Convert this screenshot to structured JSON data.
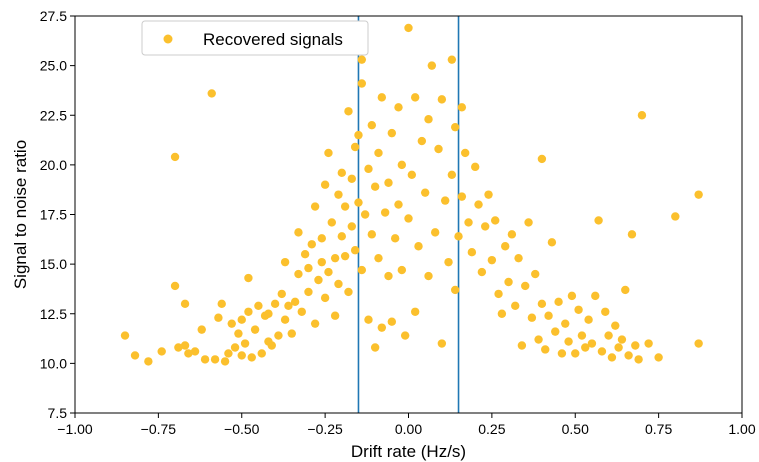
{
  "chart_data": {
    "type": "scatter",
    "title": "",
    "xlabel": "Drift rate (Hz/s)",
    "ylabel": "Signal to noise ratio",
    "xlim": [
      -1.0,
      1.0
    ],
    "ylim": [
      7.5,
      27.5
    ],
    "xticks": [
      -1.0,
      -0.75,
      -0.5,
      -0.25,
      0.0,
      0.25,
      0.5,
      0.75,
      1.0
    ],
    "xtick_labels": [
      "−1.00",
      "−0.75",
      "−0.50",
      "−0.25",
      "0.00",
      "0.25",
      "0.50",
      "0.75",
      "1.00"
    ],
    "yticks": [
      7.5,
      10.0,
      12.5,
      15.0,
      17.5,
      20.0,
      22.5,
      25.0,
      27.5
    ],
    "ytick_labels": [
      "7.5",
      "10.0",
      "12.5",
      "15.0",
      "17.5",
      "20.0",
      "22.5",
      "25.0",
      "27.5"
    ],
    "grid": false,
    "legend_position": "top-left",
    "vlines": [
      -0.15,
      0.15
    ],
    "vline_color": "#1f77b4",
    "series": [
      {
        "name": "Recovered signals",
        "color": "#fbc02d",
        "points": [
          [
            -0.85,
            11.4
          ],
          [
            -0.82,
            10.4
          ],
          [
            -0.78,
            10.1
          ],
          [
            -0.74,
            10.6
          ],
          [
            -0.7,
            20.4
          ],
          [
            -0.7,
            13.9
          ],
          [
            -0.69,
            10.8
          ],
          [
            -0.67,
            13.0
          ],
          [
            -0.67,
            10.9
          ],
          [
            -0.66,
            10.5
          ],
          [
            -0.64,
            10.6
          ],
          [
            -0.62,
            11.7
          ],
          [
            -0.61,
            10.2
          ],
          [
            -0.59,
            23.6
          ],
          [
            -0.58,
            10.2
          ],
          [
            -0.57,
            12.3
          ],
          [
            -0.56,
            13.0
          ],
          [
            -0.55,
            10.1
          ],
          [
            -0.54,
            10.5
          ],
          [
            -0.53,
            12.0
          ],
          [
            -0.52,
            10.8
          ],
          [
            -0.51,
            11.5
          ],
          [
            -0.5,
            12.2
          ],
          [
            -0.5,
            10.4
          ],
          [
            -0.49,
            11.0
          ],
          [
            -0.48,
            14.3
          ],
          [
            -0.48,
            12.6
          ],
          [
            -0.47,
            10.3
          ],
          [
            -0.46,
            11.7
          ],
          [
            -0.45,
            12.9
          ],
          [
            -0.44,
            10.5
          ],
          [
            -0.43,
            12.4
          ],
          [
            -0.42,
            11.1
          ],
          [
            -0.42,
            12.5
          ],
          [
            -0.41,
            10.9
          ],
          [
            -0.4,
            13.0
          ],
          [
            -0.39,
            11.4
          ],
          [
            -0.38,
            13.5
          ],
          [
            -0.37,
            12.2
          ],
          [
            -0.37,
            15.1
          ],
          [
            -0.36,
            12.9
          ],
          [
            -0.35,
            11.5
          ],
          [
            -0.34,
            13.1
          ],
          [
            -0.33,
            14.5
          ],
          [
            -0.33,
            16.6
          ],
          [
            -0.32,
            12.6
          ],
          [
            -0.31,
            15.5
          ],
          [
            -0.3,
            13.6
          ],
          [
            -0.3,
            14.8
          ],
          [
            -0.29,
            16.0
          ],
          [
            -0.28,
            12.0
          ],
          [
            -0.28,
            17.9
          ],
          [
            -0.27,
            14.2
          ],
          [
            -0.26,
            15.1
          ],
          [
            -0.26,
            16.3
          ],
          [
            -0.25,
            13.3
          ],
          [
            -0.25,
            19.0
          ],
          [
            -0.24,
            14.6
          ],
          [
            -0.24,
            20.6
          ],
          [
            -0.23,
            17.1
          ],
          [
            -0.22,
            15.3
          ],
          [
            -0.22,
            12.4
          ],
          [
            -0.21,
            18.5
          ],
          [
            -0.21,
            14.0
          ],
          [
            -0.2,
            19.6
          ],
          [
            -0.2,
            16.4
          ],
          [
            -0.19,
            15.4
          ],
          [
            -0.19,
            17.9
          ],
          [
            -0.18,
            22.7
          ],
          [
            -0.18,
            13.6
          ],
          [
            -0.17,
            19.3
          ],
          [
            -0.17,
            16.9
          ],
          [
            -0.16,
            20.9
          ],
          [
            -0.16,
            15.7
          ],
          [
            -0.15,
            18.1
          ],
          [
            -0.15,
            21.5
          ],
          [
            -0.14,
            14.7
          ],
          [
            -0.14,
            24.1
          ],
          [
            -0.14,
            25.3
          ],
          [
            -0.13,
            17.5
          ],
          [
            -0.12,
            12.2
          ],
          [
            -0.12,
            19.8
          ],
          [
            -0.11,
            22.0
          ],
          [
            -0.11,
            16.5
          ],
          [
            -0.1,
            18.9
          ],
          [
            -0.1,
            10.8
          ],
          [
            -0.09,
            15.3
          ],
          [
            -0.09,
            20.6
          ],
          [
            -0.08,
            23.4
          ],
          [
            -0.08,
            11.8
          ],
          [
            -0.07,
            17.6
          ],
          [
            -0.06,
            14.4
          ],
          [
            -0.06,
            19.1
          ],
          [
            -0.05,
            21.6
          ],
          [
            -0.05,
            12.1
          ],
          [
            -0.04,
            16.3
          ],
          [
            -0.03,
            22.9
          ],
          [
            -0.03,
            18.0
          ],
          [
            -0.02,
            20.0
          ],
          [
            -0.02,
            14.7
          ],
          [
            -0.01,
            11.4
          ],
          [
            0.0,
            26.9
          ],
          [
            0.0,
            17.3
          ],
          [
            0.01,
            19.5
          ],
          [
            0.02,
            23.4
          ],
          [
            0.02,
            12.6
          ],
          [
            0.03,
            15.9
          ],
          [
            0.04,
            21.2
          ],
          [
            0.05,
            18.6
          ],
          [
            0.06,
            22.3
          ],
          [
            0.06,
            14.4
          ],
          [
            0.07,
            25.0
          ],
          [
            0.08,
            16.6
          ],
          [
            0.09,
            20.8
          ],
          [
            0.1,
            11.0
          ],
          [
            0.1,
            23.3
          ],
          [
            0.11,
            18.2
          ],
          [
            0.12,
            15.1
          ],
          [
            0.13,
            25.3
          ],
          [
            0.13,
            19.5
          ],
          [
            0.14,
            21.9
          ],
          [
            0.14,
            13.7
          ],
          [
            0.15,
            16.4
          ],
          [
            0.16,
            22.9
          ],
          [
            0.16,
            18.4
          ],
          [
            0.17,
            20.6
          ],
          [
            0.18,
            17.1
          ],
          [
            0.19,
            15.6
          ],
          [
            0.2,
            19.9
          ],
          [
            0.21,
            18.0
          ],
          [
            0.22,
            14.6
          ],
          [
            0.23,
            16.9
          ],
          [
            0.24,
            18.5
          ],
          [
            0.25,
            15.2
          ],
          [
            0.26,
            17.2
          ],
          [
            0.27,
            13.5
          ],
          [
            0.28,
            12.5
          ],
          [
            0.29,
            15.9
          ],
          [
            0.3,
            14.1
          ],
          [
            0.31,
            16.5
          ],
          [
            0.32,
            12.9
          ],
          [
            0.33,
            15.3
          ],
          [
            0.34,
            10.9
          ],
          [
            0.35,
            13.9
          ],
          [
            0.36,
            17.1
          ],
          [
            0.37,
            12.3
          ],
          [
            0.38,
            14.5
          ],
          [
            0.39,
            11.2
          ],
          [
            0.4,
            20.3
          ],
          [
            0.4,
            13.0
          ],
          [
            0.41,
            10.7
          ],
          [
            0.42,
            12.4
          ],
          [
            0.43,
            16.1
          ],
          [
            0.44,
            11.6
          ],
          [
            0.45,
            13.1
          ],
          [
            0.46,
            10.5
          ],
          [
            0.47,
            12.0
          ],
          [
            0.48,
            11.1
          ],
          [
            0.49,
            13.4
          ],
          [
            0.5,
            10.5
          ],
          [
            0.51,
            12.7
          ],
          [
            0.52,
            11.4
          ],
          [
            0.53,
            10.8
          ],
          [
            0.54,
            12.2
          ],
          [
            0.55,
            11.0
          ],
          [
            0.56,
            13.4
          ],
          [
            0.57,
            17.2
          ],
          [
            0.58,
            10.6
          ],
          [
            0.59,
            12.6
          ],
          [
            0.6,
            11.4
          ],
          [
            0.61,
            10.3
          ],
          [
            0.62,
            11.9
          ],
          [
            0.63,
            10.8
          ],
          [
            0.64,
            11.2
          ],
          [
            0.65,
            13.7
          ],
          [
            0.66,
            10.4
          ],
          [
            0.67,
            16.5
          ],
          [
            0.68,
            10.9
          ],
          [
            0.69,
            10.2
          ],
          [
            0.7,
            22.5
          ],
          [
            0.72,
            11.0
          ],
          [
            0.75,
            10.3
          ],
          [
            0.8,
            17.4
          ],
          [
            0.87,
            18.5
          ],
          [
            0.87,
            11.0
          ]
        ]
      }
    ]
  }
}
